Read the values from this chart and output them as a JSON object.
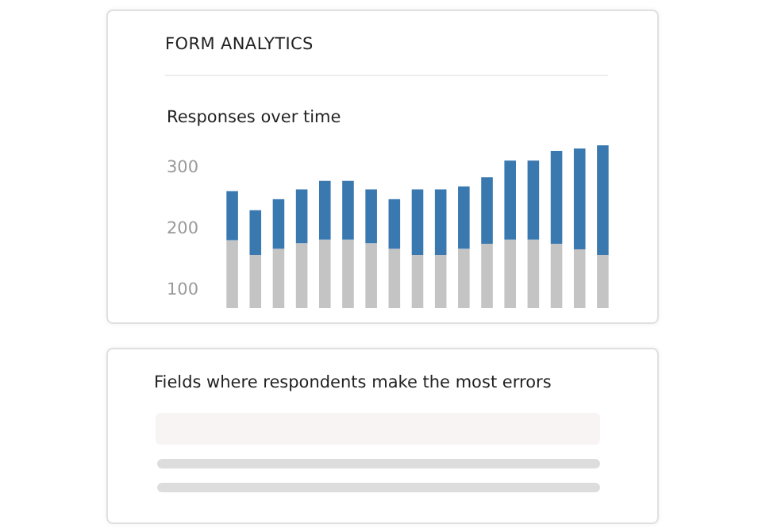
{
  "chart_data": {
    "type": "bar",
    "title": "FORM ANALYTICS",
    "subtitle": "Responses over time",
    "annotations": [
      "Fields where respondents make the most errors"
    ],
    "categories": [
      null,
      null,
      null,
      null,
      null,
      null,
      null,
      null,
      null,
      null,
      null,
      null,
      null,
      null,
      null,
      null,
      null
    ],
    "stacked": true,
    "series": [
      {
        "color": "#c4c4c4",
        "values": [
          181,
          157,
          167,
          176,
          182,
          182,
          176,
          167,
          157,
          157,
          167,
          175,
          182,
          182,
          175,
          166,
          157
        ]
      },
      {
        "color": "#3a78b0",
        "values": [
          80,
          73,
          81,
          88,
          96,
          96,
          88,
          81,
          107,
          107,
          102,
          109,
          129,
          129,
          152,
          165,
          179
        ]
      }
    ],
    "ylim": [
      70,
      340
    ],
    "yticks": [
      100,
      200,
      300
    ],
    "tick_labels": "y",
    "grid": false
  }
}
